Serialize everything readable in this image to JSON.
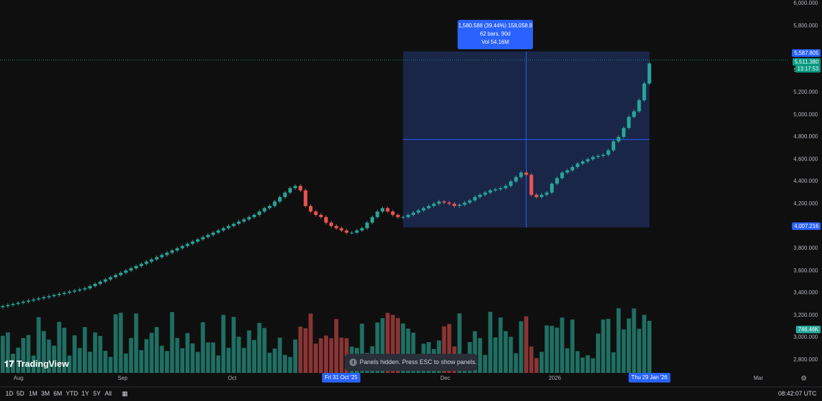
{
  "app": {
    "brand": "TradingView"
  },
  "price_axis": {
    "ticks": [
      "6,000.000",
      "5,800.000",
      "5,400.000",
      "5,200.000",
      "5,000.000",
      "4,800.000",
      "4,600.000",
      "4,400.000",
      "4,200.000",
      "3,800.000",
      "3,600.000",
      "3,400.000",
      "3,200.000",
      "3,000.000",
      "2,800.000"
    ],
    "tick_values": [
      6000,
      5800,
      5400,
      5200,
      5000,
      4800,
      4600,
      4400,
      4200,
      3800,
      3600,
      3400,
      3200,
      3000,
      2800
    ],
    "measure_high_label": "5,587.805",
    "last_price_label": "5,511.380",
    "countdown_label": "13:17:53",
    "measure_low_label": "4,007.216",
    "volume_label": "746.46K",
    "colors": {
      "measure": "#2962ff",
      "last": "#089981",
      "volume": "#26a69a"
    }
  },
  "time_axis": {
    "labels": [
      "Aug",
      "Sep",
      "Oct",
      "Dec",
      "2026",
      "Mar"
    ],
    "start_tag": "Fri 31 Oct '25",
    "end_tag": "Thu 29 Jan '26"
  },
  "measure_tooltip": {
    "line1": "1,580.588 (39.44%) 158,058.8",
    "line2": "62 bars, 90d",
    "line3": "Vol 54.16M"
  },
  "toast": {
    "text": "Panels hidden. Press ESC to show panels.",
    "icon": "info-icon"
  },
  "bottom_bar": {
    "ranges": [
      "1D",
      "5D",
      "1M",
      "3M",
      "6M",
      "YTD",
      "1Y",
      "5Y",
      "All"
    ],
    "calendar_icon": "calendar-range-icon",
    "clock": "08:42:07 UTC"
  },
  "colors": {
    "up": "#26a69a",
    "down": "#ef5350",
    "measure_fill": "#1c2a52",
    "background": "#0f0f0f"
  },
  "chart_data": {
    "type": "candlestick",
    "ylim": [
      2700,
      6050
    ],
    "closes_approx": [
      3300,
      3310,
      3320,
      3330,
      3340,
      3350,
      3360,
      3370,
      3380,
      3390,
      3400,
      3410,
      3420,
      3430,
      3440,
      3450,
      3460,
      3480,
      3500,
      3520,
      3540,
      3560,
      3580,
      3600,
      3620,
      3640,
      3660,
      3680,
      3700,
      3720,
      3740,
      3760,
      3780,
      3800,
      3820,
      3840,
      3860,
      3880,
      3900,
      3920,
      3940,
      3960,
      3980,
      4000,
      4020,
      4040,
      4060,
      4080,
      4100,
      4120,
      4150,
      4180,
      4200,
      4240,
      4280,
      4320,
      4360,
      4380,
      4340,
      4200,
      4150,
      4120,
      4100,
      4050,
      4020,
      4000,
      3980,
      3960,
      3960,
      3980,
      4000,
      4050,
      4100,
      4150,
      4180,
      4150,
      4120,
      4100,
      4100,
      4120,
      4140,
      4160,
      4180,
      4200,
      4220,
      4240,
      4230,
      4220,
      4200,
      4210,
      4230,
      4250,
      4280,
      4300,
      4320,
      4340,
      4350,
      4360,
      4380,
      4420,
      4460,
      4500,
      4480,
      4300,
      4280,
      4300,
      4320,
      4400,
      4450,
      4500,
      4520,
      4550,
      4580,
      4600,
      4620,
      4640,
      4650,
      4660,
      4700,
      4780,
      4820,
      4900,
      5000,
      5050,
      5150,
      5300,
      5480
    ]
  }
}
